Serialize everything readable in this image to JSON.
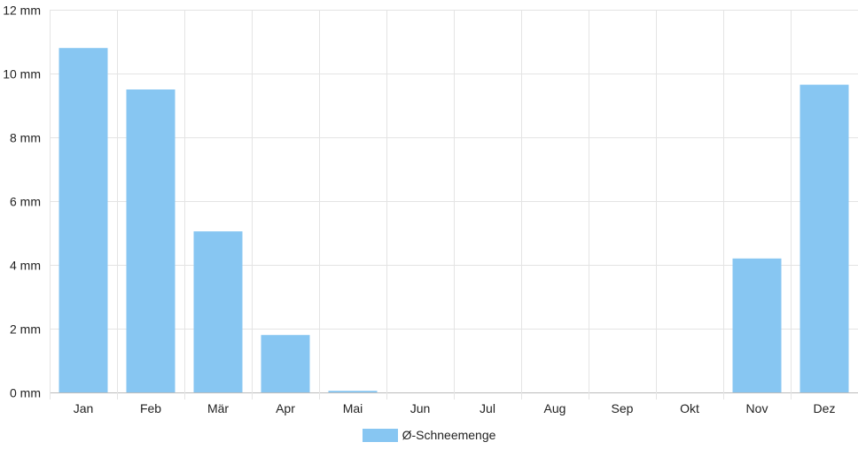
{
  "chart_data": {
    "type": "bar",
    "categories": [
      "Jan",
      "Feb",
      "Mär",
      "Apr",
      "Mai",
      "Jun",
      "Jul",
      "Aug",
      "Sep",
      "Okt",
      "Nov",
      "Dez"
    ],
    "series": [
      {
        "name": "Ø-Schneemenge",
        "values": [
          10.8,
          9.5,
          5.05,
          1.8,
          0.05,
          0,
          0,
          0,
          0,
          0,
          4.2,
          9.65
        ],
        "color": "#87c6f2"
      }
    ],
    "ylim": [
      0,
      12
    ],
    "yticks": [
      0,
      2,
      4,
      6,
      8,
      10,
      12
    ],
    "ytick_labels": [
      "0 mm",
      "2 mm",
      "4 mm",
      "6 mm",
      "8 mm",
      "10 mm",
      "12 mm"
    ],
    "title": "",
    "xlabel": "",
    "ylabel": "",
    "grid": true,
    "legend_position": "bottom"
  }
}
